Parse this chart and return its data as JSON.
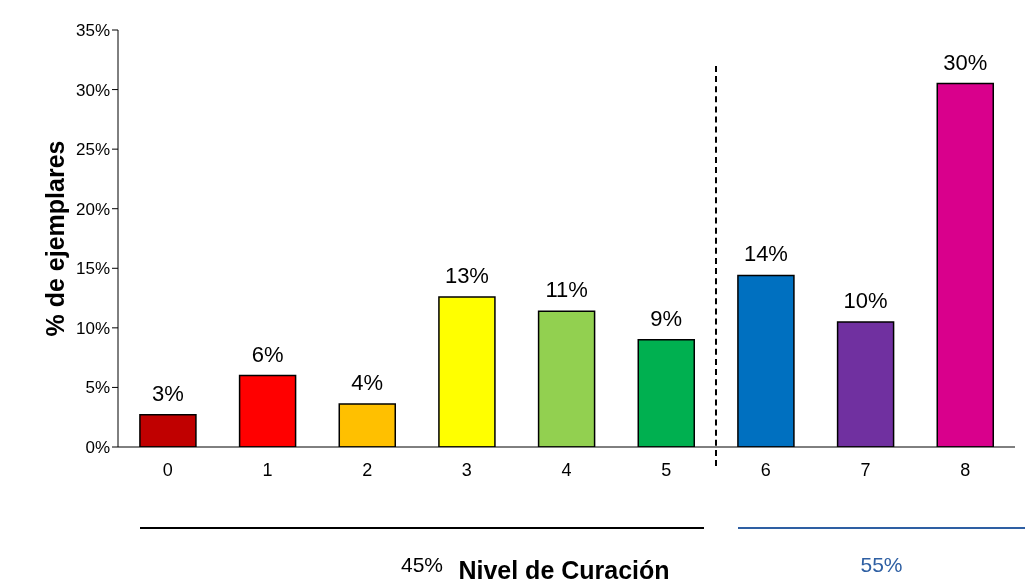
{
  "chart_data": {
    "type": "bar",
    "xlabel": "Nivel de Curación",
    "ylabel": "% de ejemplares",
    "categories": [
      "0",
      "1",
      "2",
      "3",
      "4",
      "5",
      "6",
      "7",
      "8"
    ],
    "values": [
      2.7,
      6.0,
      3.6,
      12.6,
      11.4,
      9.0,
      14.4,
      10.5,
      30.5
    ],
    "colors": [
      "#c00000",
      "#ff0000",
      "#ffc000",
      "#ffff00",
      "#92d050",
      "#00b050",
      "#0070c0",
      "#7030a0",
      "#d9008c"
    ],
    "value_labels": [
      "3%",
      "6%",
      "4%",
      "13%",
      "11%",
      "9%",
      "14%",
      "10%",
      "30%"
    ],
    "ylim": [
      0,
      35
    ],
    "yticks": [
      {
        "value": 0,
        "label": "0%"
      },
      {
        "value": 5,
        "label": "5%"
      },
      {
        "value": 10,
        "label": "10%"
      },
      {
        "value": 15,
        "label": "15%"
      },
      {
        "value": 20,
        "label": "20%"
      },
      {
        "value": 25,
        "label": "25%"
      },
      {
        "value": 30,
        "label": "30%"
      },
      {
        "value": 35,
        "label": "35%"
      }
    ],
    "annotations": [
      "45%",
      "55%"
    ],
    "grid": false,
    "legend": false
  }
}
